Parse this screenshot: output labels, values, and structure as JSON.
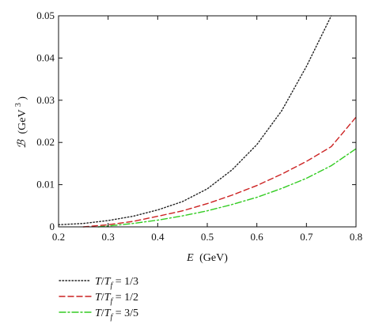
{
  "chart_data": {
    "type": "line",
    "title": "",
    "xlabel": {
      "var": "E",
      "unit": "(GeV)"
    },
    "ylabel": {
      "var": "ℬ",
      "unit_pre": "(GeV",
      "unit_sup": "3",
      "unit_post": ")"
    },
    "xlim": [
      0.2,
      0.8
    ],
    "ylim": [
      0,
      0.05
    ],
    "xticks": [
      "0.2",
      "0.3",
      "0.4",
      "0.5",
      "0.6",
      "0.7",
      "0.8"
    ],
    "yticks": [
      "0",
      "0.01",
      "0.02",
      "0.03",
      "0.04",
      "0.05"
    ],
    "grid": false,
    "legend_position": "below",
    "series": [
      {
        "legend": {
          "lhs_a": "T",
          "lhs_b": "T",
          "sub": "f",
          "rhs": " = 1/3"
        },
        "style": "dotted",
        "color": "#222222",
        "x": [
          0.2,
          0.25,
          0.3,
          0.35,
          0.4,
          0.45,
          0.5,
          0.55,
          0.6,
          0.65,
          0.7,
          0.75
        ],
        "y": [
          0.0005,
          0.0008,
          0.0015,
          0.0025,
          0.004,
          0.006,
          0.009,
          0.0135,
          0.0195,
          0.0275,
          0.038,
          0.05
        ]
      },
      {
        "legend": {
          "lhs_a": "T",
          "lhs_b": "T",
          "sub": "f",
          "rhs": " = 1/2"
        },
        "style": "dashed",
        "color": "#cc2222",
        "x": [
          0.25,
          0.3,
          0.35,
          0.4,
          0.45,
          0.5,
          0.55,
          0.6,
          0.65,
          0.7,
          0.75,
          0.8
        ],
        "y": [
          0.0,
          0.0005,
          0.0013,
          0.0025,
          0.0038,
          0.0055,
          0.0075,
          0.0098,
          0.0125,
          0.0155,
          0.019,
          0.026
        ]
      },
      {
        "legend": {
          "lhs_a": "T",
          "lhs_b": "T",
          "sub": "f",
          "rhs": " = 3/5"
        },
        "style": "dashdot",
        "color": "#33cc22",
        "x": [
          0.28,
          0.3,
          0.35,
          0.4,
          0.45,
          0.5,
          0.55,
          0.6,
          0.65,
          0.7,
          0.75,
          0.8
        ],
        "y": [
          0.0,
          0.0002,
          0.0008,
          0.0016,
          0.0026,
          0.0038,
          0.0053,
          0.007,
          0.0091,
          0.0115,
          0.0145,
          0.0185
        ]
      }
    ]
  }
}
